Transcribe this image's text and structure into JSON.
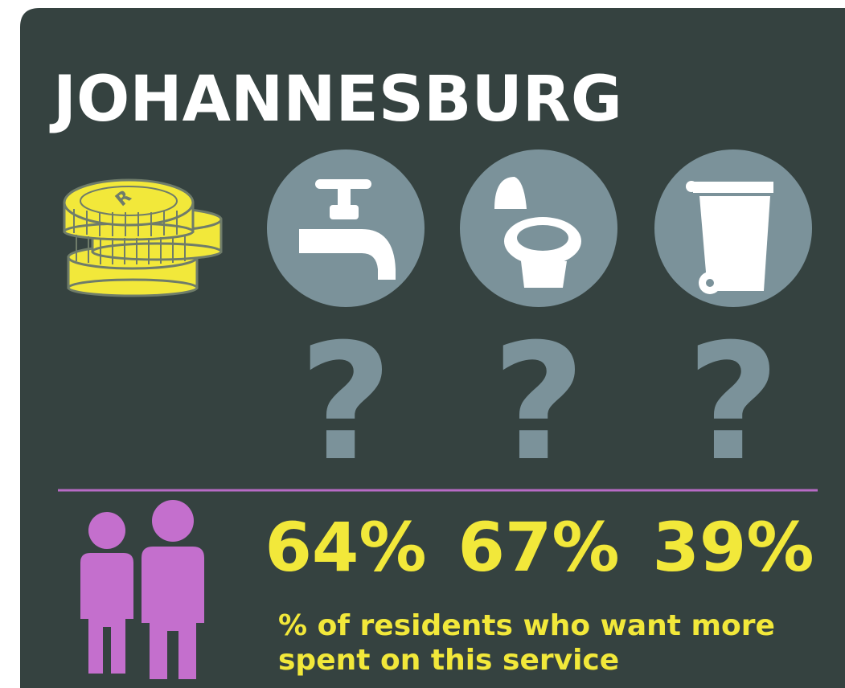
{
  "title": "JOHANNESBURG",
  "currency_symbol": "R",
  "question_mark": "?",
  "stats": [
    "64%",
    "67%",
    "39%"
  ],
  "caption": [
    "% of residents who want more",
    "spent on this service"
  ]
}
